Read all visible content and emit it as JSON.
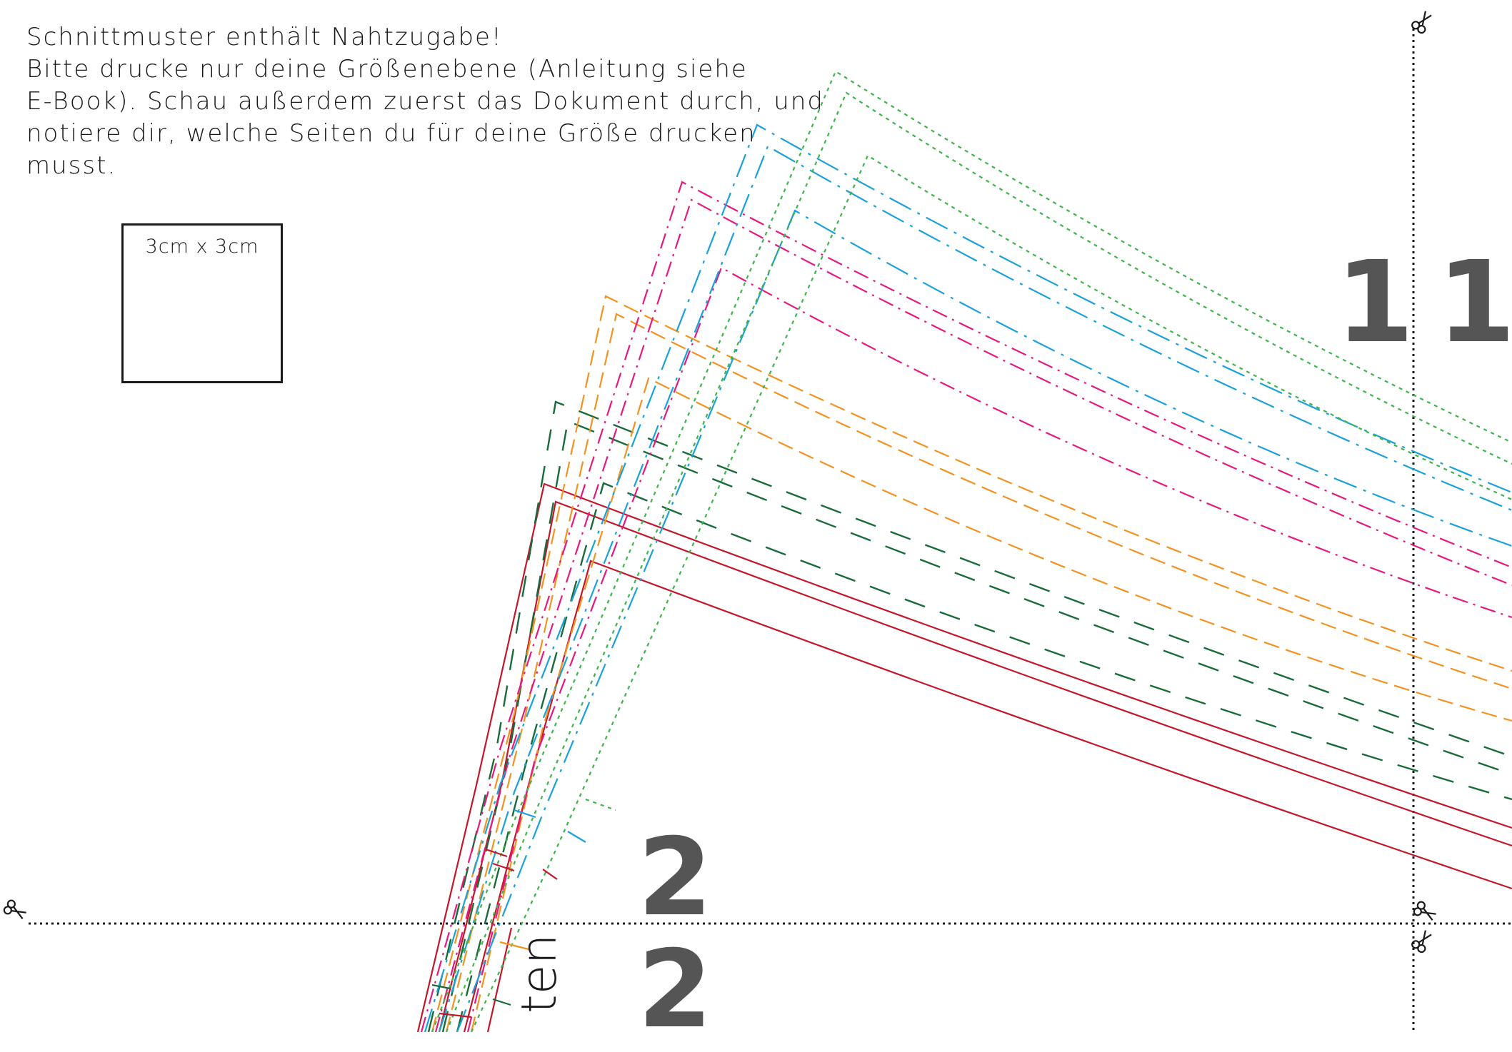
{
  "notice": {
    "lines": [
      "Schnittmuster enthält Nahtzugabe!",
      "Bitte drucke nur deine Größenebene (Anleitung siehe",
      "E-Book). Schau außerdem zuerst das Dokument durch, und",
      "notiere dir, welche Seiten du für deine Größe drucken",
      "musst."
    ]
  },
  "test_square": {
    "label": "3cm x 3cm"
  },
  "page_numbers": {
    "right": "11",
    "bottom_upper": "2",
    "bottom_lower": "2"
  },
  "rotated_label": "ten",
  "icons": {
    "cut_marks": "scissors-icon"
  },
  "colors": {
    "red": "#c4162a",
    "dark_green": "#1a6b3a",
    "orange": "#f39220",
    "magenta": "#e6197e",
    "blue": "#1aa1d9",
    "light_green": "#3db54a",
    "cut_line": "#1a1a1a",
    "page_number": "#555555"
  }
}
